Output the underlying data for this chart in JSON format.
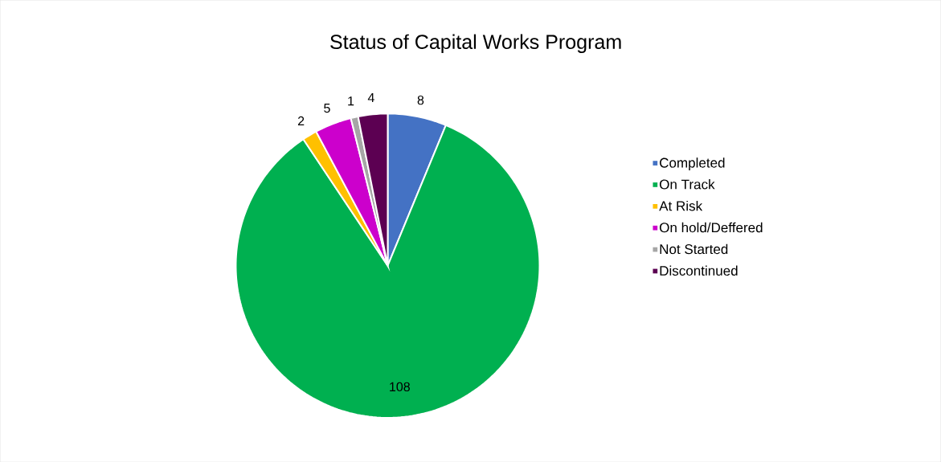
{
  "chart_data": {
    "type": "pie",
    "title": "Status of Capital Works Program",
    "categories": [
      "Completed",
      "On Track",
      "At Risk",
      "On hold/Deffered",
      "Not Started",
      "Discontinued"
    ],
    "values": [
      8,
      108,
      2,
      5,
      1,
      4
    ],
    "colors": [
      "#4472c4",
      "#00b050",
      "#ffc000",
      "#cc00cc",
      "#a6a6a6",
      "#5c0052"
    ],
    "data_labels": true,
    "legend": "right"
  }
}
